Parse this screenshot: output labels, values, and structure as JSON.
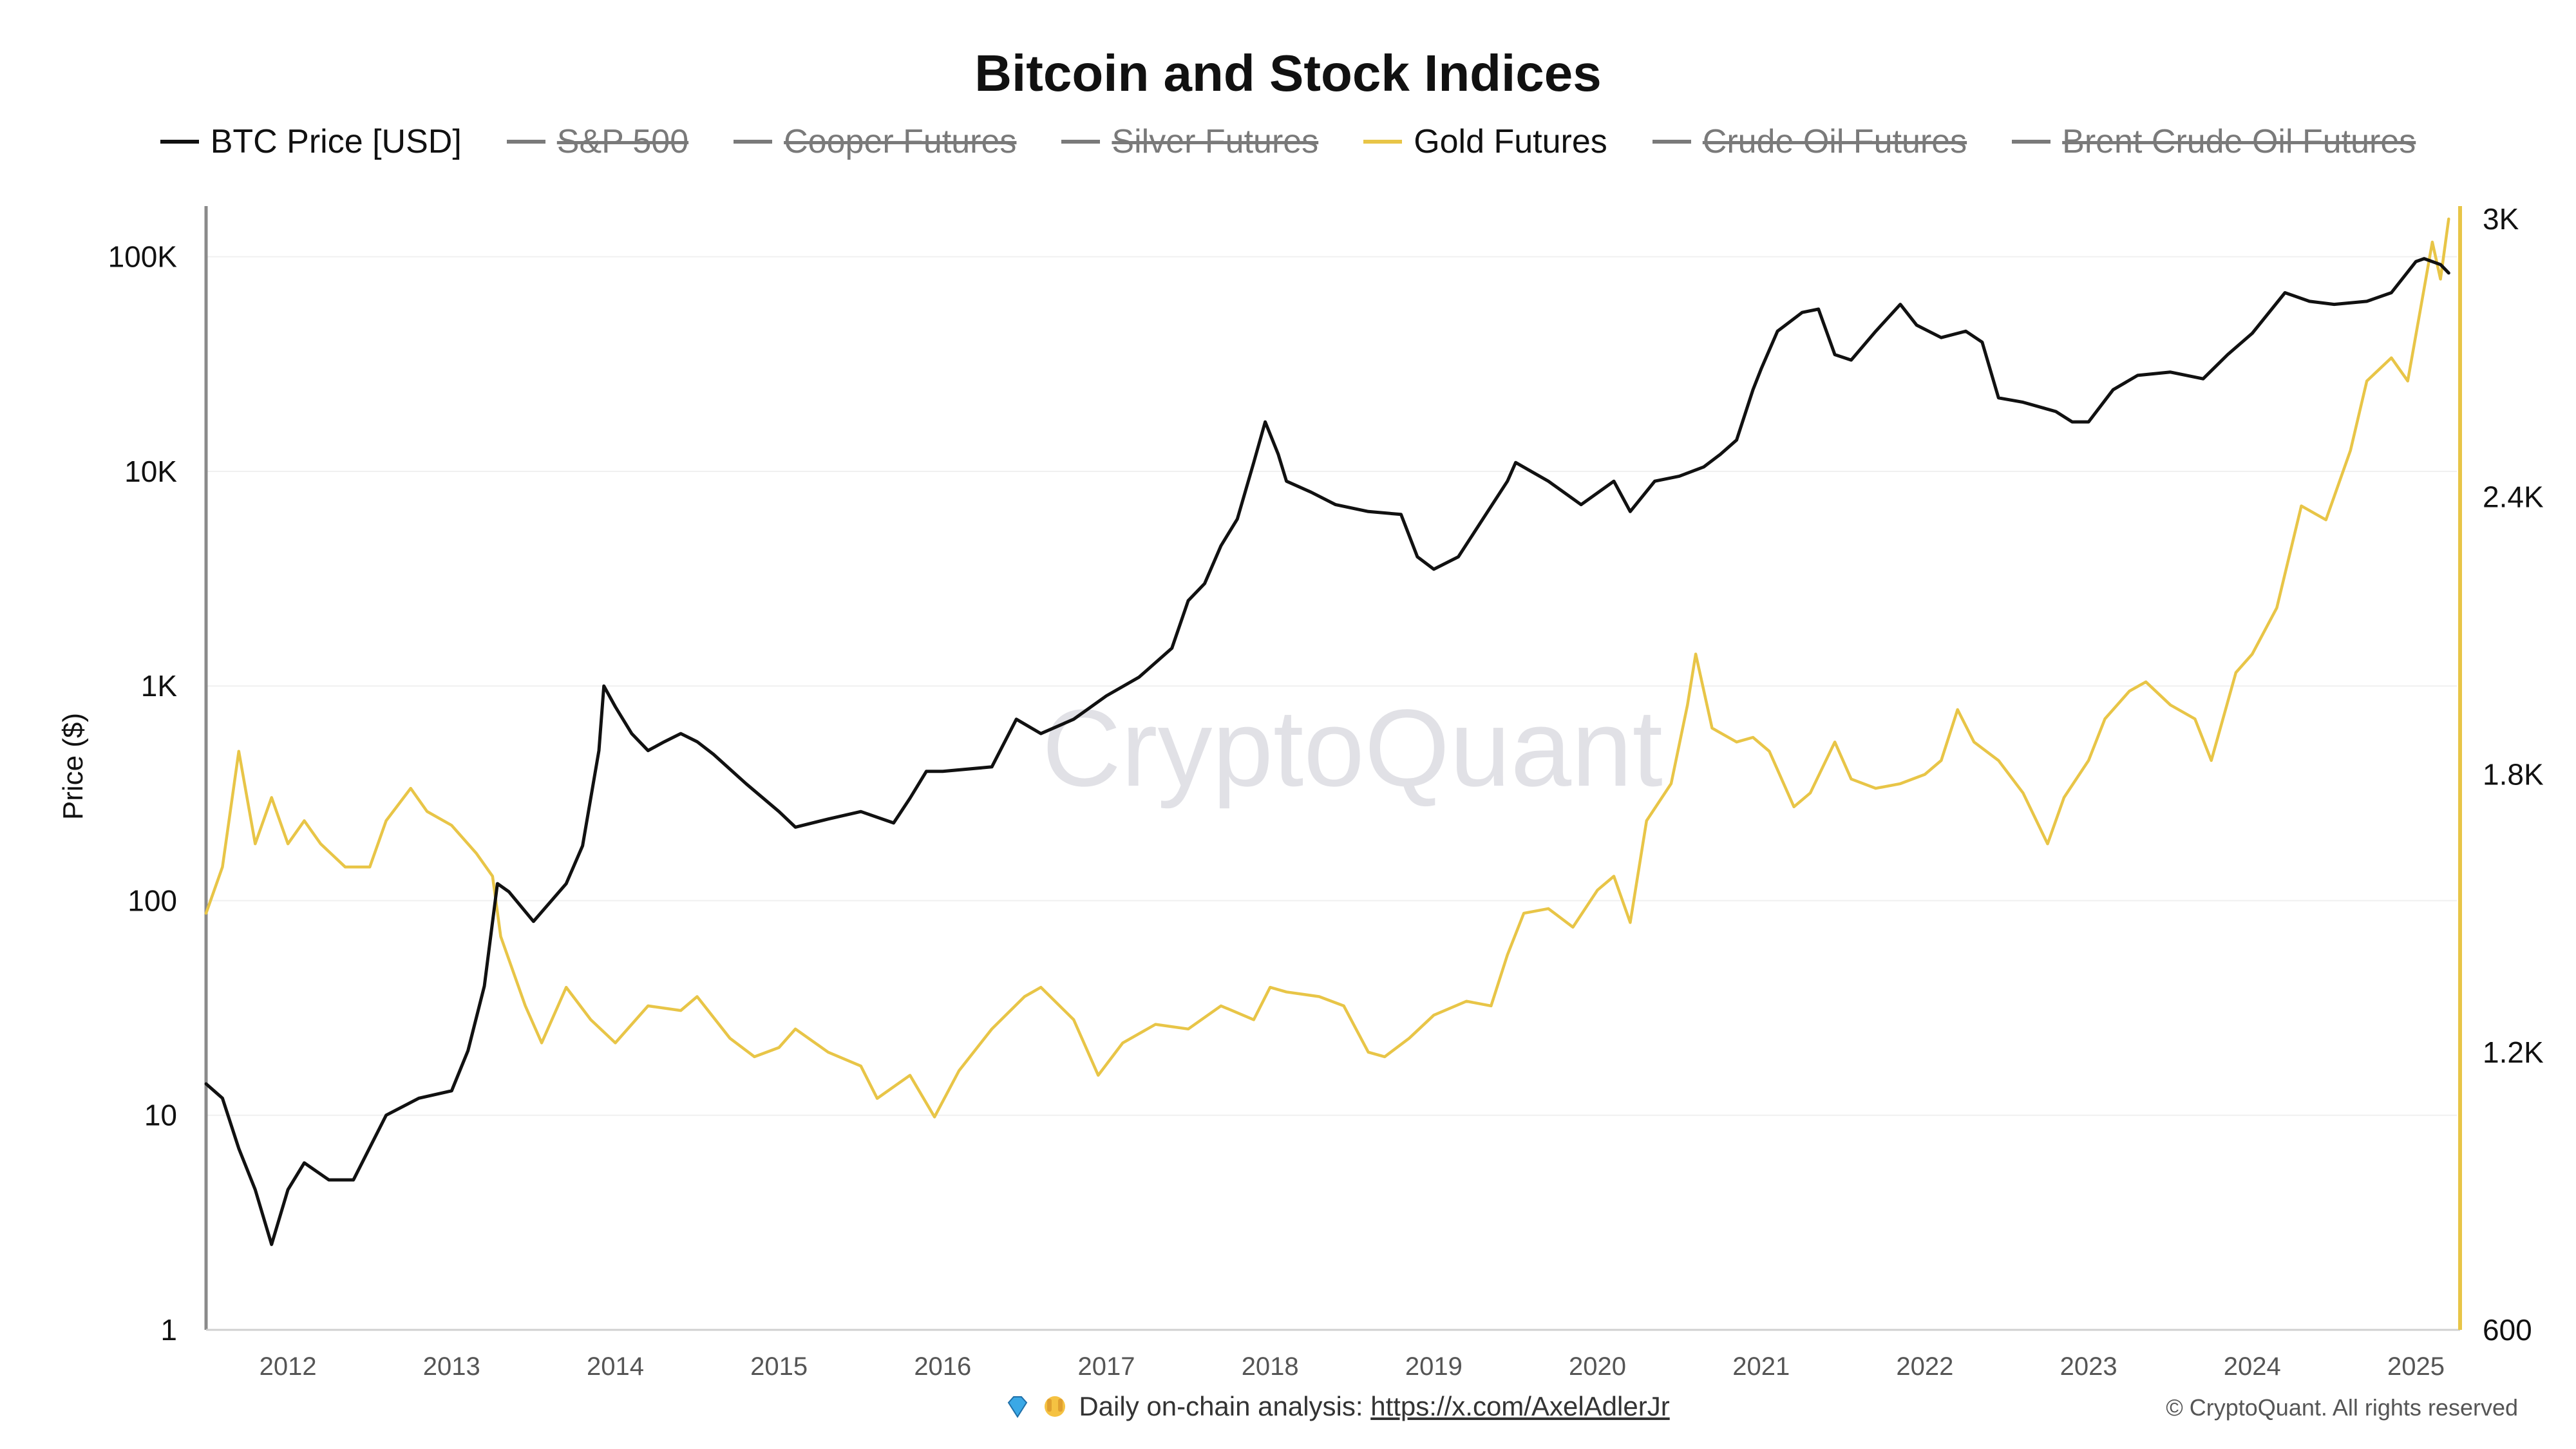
{
  "chart_data": {
    "type": "line",
    "title": "Bitcoin and Stock Indices",
    "watermark": "CryptoQuant",
    "ylabel": "Price ($)",
    "y_scale": "log",
    "ylim": [
      1,
      150000
    ],
    "y_ticks": [
      1,
      10,
      100,
      1000,
      10000,
      100000
    ],
    "y_tick_labels": [
      "1",
      "10",
      "100",
      "1K",
      "10K",
      "100K"
    ],
    "y2lim": [
      600,
      3000
    ],
    "y2_ticks": [
      600,
      1200,
      1800,
      2400,
      3000
    ],
    "y2_tick_labels": [
      "600",
      "1.2K",
      "1.8K",
      "2.4K",
      "3K"
    ],
    "xlim": [
      2011.5,
      2025.25
    ],
    "x_ticks": [
      2012,
      2013,
      2014,
      2015,
      2016,
      2017,
      2018,
      2019,
      2020,
      2021,
      2022,
      2023,
      2024,
      2025
    ],
    "x_tick_labels": [
      "2012",
      "2013",
      "2014",
      "2015",
      "2016",
      "2017",
      "2018",
      "2019",
      "2020",
      "2021",
      "2022",
      "2023",
      "2024",
      "2025"
    ],
    "grid": true,
    "legend_position": "top-center",
    "legend": [
      {
        "name": "BTC Price [USD]",
        "color": "#111111",
        "visible": true
      },
      {
        "name": "S&P 500",
        "color": "#7a7a7a",
        "visible": false
      },
      {
        "name": "Cooper Futures",
        "color": "#7a7a7a",
        "visible": false
      },
      {
        "name": "Silver Futures",
        "color": "#7a7a7a",
        "visible": false
      },
      {
        "name": "Gold Futures",
        "color": "#e8c547",
        "visible": true
      },
      {
        "name": "Crude Oil Futures",
        "color": "#7a7a7a",
        "visible": false
      },
      {
        "name": "Brent Crude Oil Futures",
        "color": "#7a7a7a",
        "visible": false
      }
    ],
    "series": [
      {
        "name": "BTC Price [USD]",
        "axis": "left",
        "color": "#111111",
        "x": [
          2011.5,
          2011.6,
          2011.7,
          2011.8,
          2011.9,
          2012.0,
          2012.1,
          2012.25,
          2012.4,
          2012.6,
          2012.8,
          2013.0,
          2013.1,
          2013.2,
          2013.28,
          2013.35,
          2013.5,
          2013.7,
          2013.8,
          2013.9,
          2013.93,
          2014.0,
          2014.1,
          2014.2,
          2014.3,
          2014.4,
          2014.5,
          2014.6,
          2014.8,
          2015.0,
          2015.1,
          2015.3,
          2015.5,
          2015.7,
          2015.8,
          2015.9,
          2016.0,
          2016.3,
          2016.45,
          2016.6,
          2016.8,
          2017.0,
          2017.2,
          2017.4,
          2017.5,
          2017.6,
          2017.7,
          2017.8,
          2017.9,
          2017.97,
          2018.05,
          2018.1,
          2018.25,
          2018.4,
          2018.6,
          2018.8,
          2018.9,
          2019.0,
          2019.15,
          2019.3,
          2019.45,
          2019.5,
          2019.7,
          2019.9,
          2020.1,
          2020.2,
          2020.35,
          2020.5,
          2020.65,
          2020.75,
          2020.85,
          2020.95,
          2021.0,
          2021.1,
          2021.25,
          2021.35,
          2021.45,
          2021.55,
          2021.7,
          2021.85,
          2021.95,
          2022.1,
          2022.25,
          2022.35,
          2022.45,
          2022.6,
          2022.8,
          2022.9,
          2023.0,
          2023.15,
          2023.3,
          2023.5,
          2023.7,
          2023.85,
          2024.0,
          2024.2,
          2024.35,
          2024.5,
          2024.7,
          2024.85,
          2025.0,
          2025.05,
          2025.15,
          2025.2
        ],
        "values": [
          14,
          12,
          7,
          4.5,
          2.5,
          4.5,
          6,
          5,
          5,
          10,
          12,
          13,
          20,
          40,
          120,
          110,
          80,
          120,
          180,
          500,
          1000,
          800,
          600,
          500,
          550,
          600,
          550,
          480,
          350,
          260,
          220,
          240,
          260,
          230,
          300,
          400,
          400,
          420,
          700,
          600,
          700,
          900,
          1100,
          1500,
          2500,
          3000,
          4500,
          6000,
          11000,
          17000,
          12000,
          9000,
          8000,
          7000,
          6500,
          6300,
          4000,
          3500,
          4000,
          6000,
          9000,
          11000,
          9000,
          7000,
          9000,
          6500,
          9000,
          9500,
          10500,
          12000,
          14000,
          24000,
          30000,
          45000,
          55000,
          57000,
          35000,
          33000,
          45000,
          60000,
          48000,
          42000,
          45000,
          40000,
          22000,
          21000,
          19000,
          17000,
          17000,
          24000,
          28000,
          29000,
          27000,
          35000,
          44000,
          68000,
          62000,
          60000,
          62000,
          68000,
          95000,
          98000,
          92000,
          84000
        ]
      },
      {
        "name": "Gold Futures",
        "axis": "right",
        "color": "#e8c547",
        "x": [
          2011.5,
          2011.6,
          2011.7,
          2011.8,
          2011.9,
          2012.0,
          2012.1,
          2012.2,
          2012.35,
          2012.5,
          2012.6,
          2012.75,
          2012.85,
          2013.0,
          2013.15,
          2013.25,
          2013.3,
          2013.45,
          2013.55,
          2013.7,
          2013.85,
          2014.0,
          2014.2,
          2014.4,
          2014.5,
          2014.7,
          2014.85,
          2015.0,
          2015.1,
          2015.3,
          2015.5,
          2015.6,
          2015.8,
          2015.95,
          2016.1,
          2016.3,
          2016.5,
          2016.6,
          2016.8,
          2016.95,
          2017.1,
          2017.3,
          2017.5,
          2017.7,
          2017.9,
          2018.0,
          2018.1,
          2018.3,
          2018.45,
          2018.6,
          2018.7,
          2018.85,
          2019.0,
          2019.2,
          2019.35,
          2019.45,
          2019.55,
          2019.7,
          2019.85,
          2020.0,
          2020.1,
          2020.2,
          2020.3,
          2020.45,
          2020.55,
          2020.6,
          2020.7,
          2020.85,
          2020.95,
          2021.05,
          2021.2,
          2021.3,
          2021.45,
          2021.55,
          2021.7,
          2021.85,
          2022.0,
          2022.1,
          2022.2,
          2022.3,
          2022.45,
          2022.6,
          2022.75,
          2022.85,
          2023.0,
          2023.1,
          2023.25,
          2023.35,
          2023.5,
          2023.65,
          2023.75,
          2023.9,
          2024.0,
          2024.15,
          2024.3,
          2024.45,
          2024.6,
          2024.7,
          2024.85,
          2024.95,
          2025.05,
          2025.1,
          2025.15,
          2025.2
        ],
        "values": [
          1500,
          1600,
          1850,
          1650,
          1750,
          1650,
          1700,
          1650,
          1600,
          1600,
          1700,
          1770,
          1720,
          1690,
          1630,
          1580,
          1450,
          1300,
          1220,
          1340,
          1270,
          1220,
          1300,
          1290,
          1320,
          1230,
          1190,
          1210,
          1250,
          1200,
          1170,
          1100,
          1150,
          1060,
          1160,
          1250,
          1320,
          1340,
          1270,
          1150,
          1220,
          1260,
          1250,
          1300,
          1270,
          1340,
          1330,
          1320,
          1300,
          1200,
          1190,
          1230,
          1280,
          1310,
          1300,
          1410,
          1500,
          1510,
          1470,
          1550,
          1580,
          1480,
          1700,
          1780,
          1950,
          2060,
          1900,
          1870,
          1880,
          1850,
          1730,
          1760,
          1870,
          1790,
          1770,
          1780,
          1800,
          1830,
          1940,
          1870,
          1830,
          1760,
          1650,
          1750,
          1830,
          1920,
          1980,
          2000,
          1950,
          1920,
          1830,
          2020,
          2060,
          2160,
          2380,
          2350,
          2500,
          2650,
          2700,
          2650,
          2850,
          2950,
          2870,
          3000
        ]
      }
    ]
  },
  "footer": {
    "text": "Daily on-chain analysis: ",
    "link": "https://x.com/AxelAdlerJr",
    "copyright": "© CryptoQuant. All rights reserved"
  }
}
